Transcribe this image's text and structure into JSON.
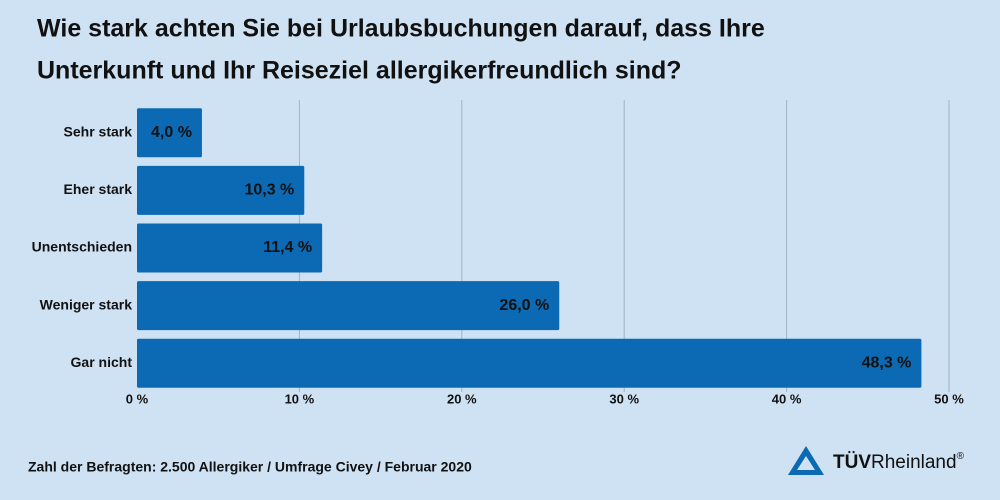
{
  "chart_data": {
    "type": "bar",
    "orientation": "horizontal",
    "title": [
      "Wie stark achten Sie bei Urlaubsbuchungen darauf, dass Ihre",
      "Unterkunft und Ihr Reiseziel allergikerfreundlich sind?"
    ],
    "categories": [
      "Sehr stark",
      "Eher stark",
      "Unentschieden",
      "Weniger stark",
      "Gar nicht"
    ],
    "values": [
      4.0,
      10.3,
      11.4,
      26.0,
      48.3
    ],
    "value_labels": [
      "4,0 %",
      "10,3 %",
      "11,4 %",
      "26,0 %",
      "48,3 %"
    ],
    "color": "#0b6ab3",
    "xlim": [
      0,
      50
    ],
    "xticks": [
      {
        "value": 0,
        "label": "0 %"
      },
      {
        "value": 10,
        "label": "10 %"
      },
      {
        "value": 20,
        "label": "20 %"
      },
      {
        "value": 30,
        "label": "30 %"
      },
      {
        "value": 40,
        "label": "40 %"
      },
      {
        "value": 50,
        "label": "50 %"
      }
    ],
    "grid": true,
    "note": "Zahl der Befragten: 2.500 Allergiker / Umfrage Civey / Februar 2020"
  },
  "brand": {
    "bold": "TÜV",
    "regular": "Rheinland",
    "mark": "®"
  }
}
